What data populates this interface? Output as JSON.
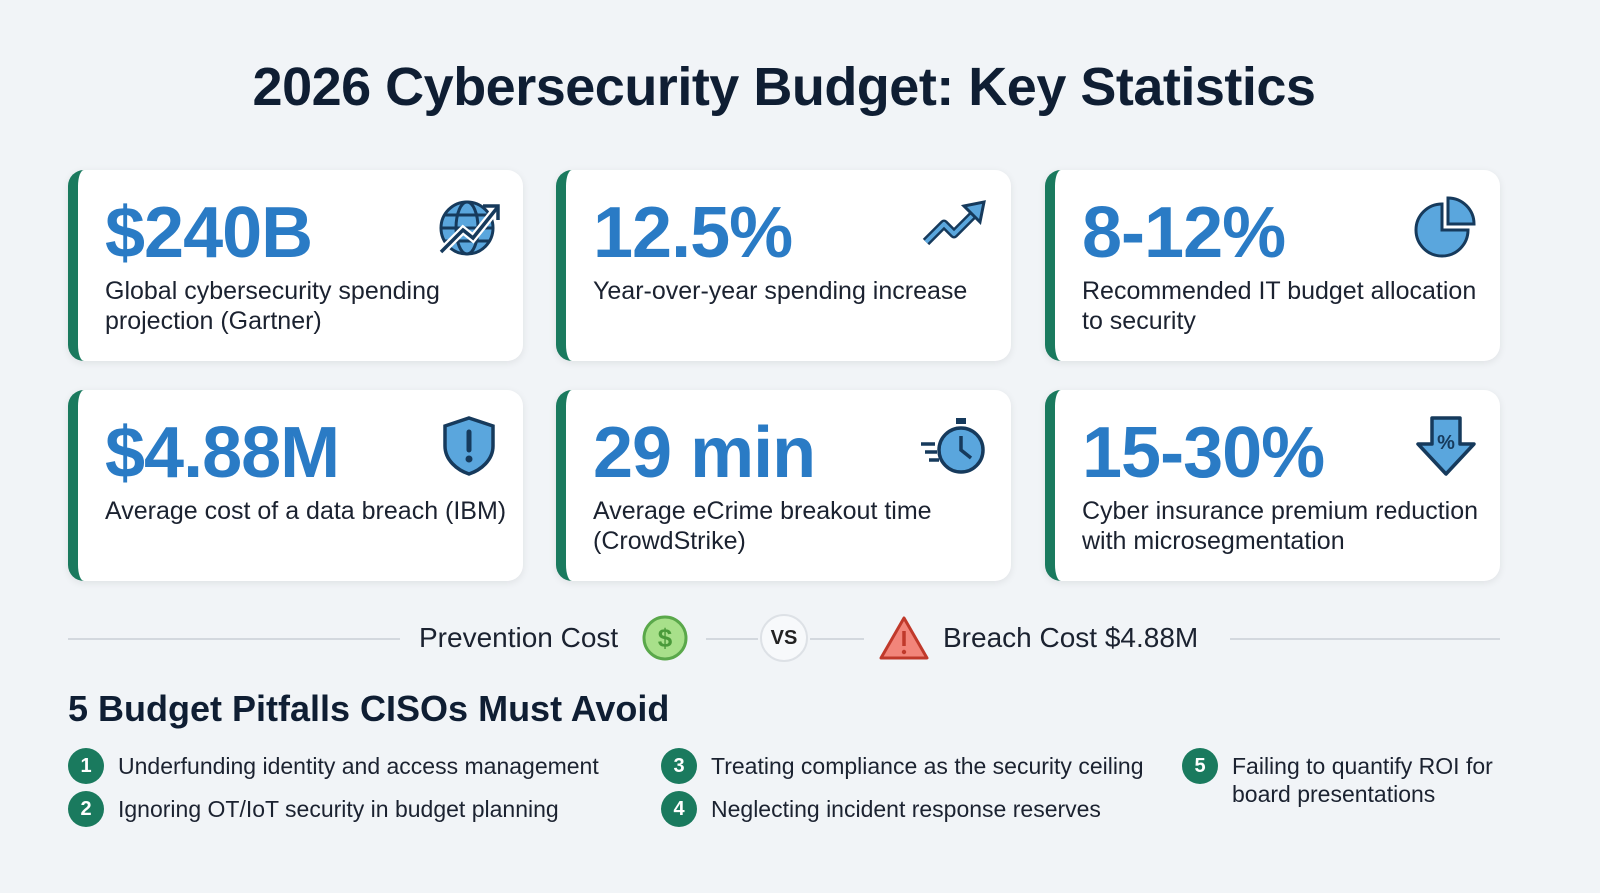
{
  "title": "2026 Cybersecurity Budget: Key Statistics",
  "colors": {
    "accent_blue": "#2a7bc5",
    "accent_green": "#1a7a5e",
    "title": "#0f1e33",
    "background": "#f1f4f7"
  },
  "stats": [
    {
      "value": "$240B",
      "description": "Global cybersecurity spending projection (Gartner)",
      "icon": "globe-trend-icon"
    },
    {
      "value": "12.5%",
      "description": "Year-over-year spending increase",
      "icon": "trend-up-icon"
    },
    {
      "value": "8-12%",
      "description": "Recommended IT budget allocation to security",
      "icon": "pie-chart-icon"
    },
    {
      "value": "$4.88M",
      "description": "Average cost of a data breach (IBM)",
      "icon": "shield-alert-icon"
    },
    {
      "value": "29 min",
      "description": "Average eCrime breakout time (CrowdStrike)",
      "icon": "stopwatch-icon"
    },
    {
      "value": "15-30%",
      "description": "Cyber insurance premium reduction with microsegmentation",
      "icon": "percent-down-arrow-icon"
    }
  ],
  "comparison": {
    "left": "Prevention Cost",
    "vs": "VS",
    "right": "Breach Cost $4.88M"
  },
  "pitfalls": {
    "heading": "5 Budget Pitfalls CISOs Must Avoid",
    "items": [
      {
        "n": "1",
        "text": "Underfunding identity and access management"
      },
      {
        "n": "2",
        "text": "Ignoring OT/IoT security in budget planning"
      },
      {
        "n": "3",
        "text": "Treating compliance as the security ceiling"
      },
      {
        "n": "4",
        "text": "Neglecting incident response reserves"
      },
      {
        "n": "5",
        "text": "Failing to quantify ROI for board presentations"
      }
    ]
  }
}
